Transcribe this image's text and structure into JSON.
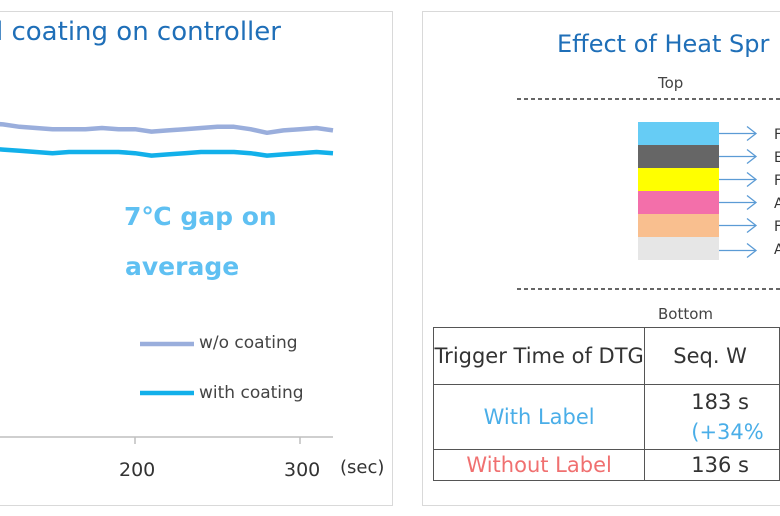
{
  "left_panel": {
    "title": "el coating on controller",
    "annotation_line1": "7℃  gap on",
    "annotation_line2": "average",
    "x_unit": "(sec)",
    "legend": [
      "w/o coating",
      "with coating"
    ]
  },
  "chart_data": {
    "type": "line",
    "title": "el coating on controller",
    "x": [
      0,
      10,
      20,
      30,
      40,
      50,
      60,
      70,
      80,
      90,
      100,
      110,
      120,
      130,
      140,
      150,
      160,
      170,
      180,
      190,
      200,
      210,
      220,
      230,
      240,
      250,
      260,
      270,
      280,
      290,
      300,
      310,
      320
    ],
    "x_ticks": [
      200,
      300
    ],
    "xlim": [
      0,
      320
    ],
    "xlabel": "(sec)",
    "series": [
      {
        "name": "w/o coating",
        "color": "#9aaedc",
        "values": [
          0.62,
          0.61,
          0.6,
          0.58,
          0.57,
          0.56,
          0.55,
          0.56,
          0.57,
          0.58,
          0.57,
          0.56,
          0.57,
          0.59,
          0.6,
          0.61,
          0.61,
          0.61,
          0.6,
          0.61,
          0.61,
          0.63,
          0.62,
          0.61,
          0.6,
          0.59,
          0.59,
          0.61,
          0.64,
          0.62,
          0.61,
          0.6,
          0.62
        ]
      },
      {
        "name": "with coating",
        "color": "#12b0ea",
        "values": [
          0.86,
          0.84,
          0.82,
          0.8,
          0.78,
          0.77,
          0.76,
          0.77,
          0.78,
          0.79,
          0.78,
          0.77,
          0.78,
          0.79,
          0.8,
          0.81,
          0.8,
          0.8,
          0.8,
          0.8,
          0.81,
          0.83,
          0.82,
          0.81,
          0.8,
          0.8,
          0.8,
          0.81,
          0.83,
          0.82,
          0.81,
          0.8,
          0.81
        ]
      }
    ]
  },
  "right_panel": {
    "title": "Effect of Heat Spr",
    "top_label": "Top",
    "bottom_label": "Bottom",
    "layers": [
      {
        "color": "#66ccf5",
        "label": "F"
      },
      {
        "color": "#666666",
        "label": "E"
      },
      {
        "color": "#ffff00",
        "label": "F"
      },
      {
        "color": "#f36faa",
        "label": "A"
      },
      {
        "color": "#f9bf8f",
        "label": "F"
      },
      {
        "color": "#e6e6e6",
        "label": "A"
      }
    ],
    "table": {
      "header": [
        "Trigger Time of DTG",
        "Seq. W"
      ],
      "rows": [
        {
          "label": "With Label",
          "value_line1": "183 s",
          "value_line2": "(+34%",
          "label_color": "#4aaee8"
        },
        {
          "label": "Without Label",
          "value_line1": "136 s",
          "value_line2": "",
          "label_color": "#f07070"
        }
      ]
    }
  }
}
